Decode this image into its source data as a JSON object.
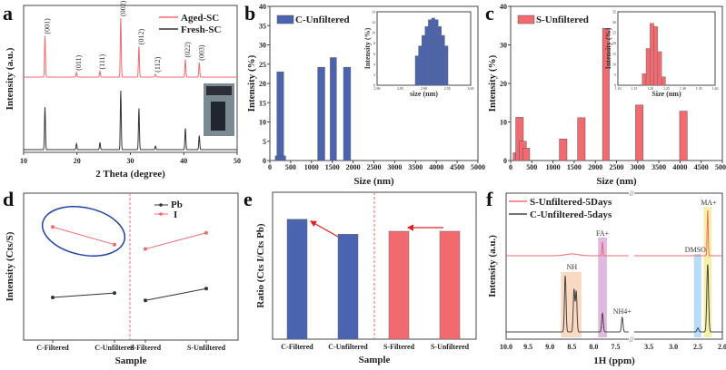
{
  "colors": {
    "red": "#f06a70",
    "blue": "#4b64b0",
    "black": "#333333",
    "ellipse": "#2040a0"
  },
  "chart_data": [
    {
      "id": "a",
      "type": "line",
      "panel_label": "a",
      "title": "",
      "xlabel": "2 Theta (degree)",
      "ylabel": "Intensity (a.u.)",
      "xlim": [
        10,
        50
      ],
      "xticks": [
        10,
        20,
        30,
        40,
        50
      ],
      "legend": [
        "Aged-SC",
        "Fresh-SC"
      ],
      "legend_position": "top-right",
      "peaks_aged": [
        {
          "x": 14.0,
          "h": 0.7,
          "label": "(001)"
        },
        {
          "x": 19.9,
          "h": 0.08,
          "label": "(011)"
        },
        {
          "x": 24.3,
          "h": 0.1,
          "label": "(111)"
        },
        {
          "x": 28.2,
          "h": 1.0,
          "label": "(002)"
        },
        {
          "x": 31.6,
          "h": 0.52,
          "label": "(012)"
        },
        {
          "x": 34.7,
          "h": 0.05,
          "label": "(112)"
        },
        {
          "x": 40.3,
          "h": 0.3,
          "label": "(022)"
        },
        {
          "x": 42.9,
          "h": 0.25,
          "label": "(003)"
        }
      ],
      "peaks_fresh": [
        {
          "x": 14.0,
          "h": 0.72
        },
        {
          "x": 19.9,
          "h": 0.1
        },
        {
          "x": 24.3,
          "h": 0.12
        },
        {
          "x": 28.2,
          "h": 1.0
        },
        {
          "x": 31.6,
          "h": 0.7
        },
        {
          "x": 34.7,
          "h": 0.06
        },
        {
          "x": 40.3,
          "h": 0.36
        },
        {
          "x": 42.9,
          "h": 0.24
        }
      ],
      "inset": "photo of crystals in vial"
    },
    {
      "id": "b",
      "type": "bar",
      "panel_label": "b",
      "xlabel": "Size (nm)",
      "ylabel": "Intensity (%)",
      "xlim": [
        0,
        5000
      ],
      "ylim": [
        0,
        40
      ],
      "xticks": [
        0,
        500,
        1000,
        1500,
        2000,
        2500,
        3000,
        3500,
        4000,
        4500,
        5000
      ],
      "yticks": [
        0,
        5,
        10,
        15,
        20,
        25,
        30,
        35,
        40
      ],
      "legend": [
        "C-Unfiltered"
      ],
      "legend_position": "top-left",
      "bars": [
        {
          "x0": 130,
          "x1": 200,
          "v": 1.2
        },
        {
          "x0": 170,
          "x1": 330,
          "v": 23.0
        },
        {
          "x0": 240,
          "x1": 380,
          "v": 1.2
        },
        {
          "x0": 1150,
          "x1": 1320,
          "v": 24.2
        },
        {
          "x0": 1450,
          "x1": 1600,
          "v": 26.7
        },
        {
          "x0": 1770,
          "x1": 1940,
          "v": 24.2
        }
      ],
      "inset": {
        "xlabel": "size (nm)",
        "ylabel": "Intensity (%)",
        "xlim": [
          2.8,
          3.0
        ],
        "ylim": [
          0,
          14
        ],
        "xticks": [
          "2.80",
          "2.85",
          "2.90",
          "2.95",
          "3.00"
        ],
        "yticks": [
          0,
          2,
          4,
          6,
          8,
          10,
          12,
          14
        ],
        "bars": [
          {
            "x": 2.885,
            "v": 5.6
          },
          {
            "x": 2.892,
            "v": 7.5
          },
          {
            "x": 2.899,
            "v": 9.5
          },
          {
            "x": 2.906,
            "v": 11.2
          },
          {
            "x": 2.913,
            "v": 12.5
          },
          {
            "x": 2.92,
            "v": 12.8
          },
          {
            "x": 2.927,
            "v": 12.5
          },
          {
            "x": 2.934,
            "v": 11.2
          },
          {
            "x": 2.941,
            "v": 9.5
          },
          {
            "x": 2.948,
            "v": 7.5
          }
        ]
      }
    },
    {
      "id": "c",
      "type": "bar",
      "panel_label": "c",
      "xlabel": "Size (nm)",
      "ylabel": "Intensity (%)",
      "xlim": [
        0,
        5000
      ],
      "ylim": [
        0,
        40
      ],
      "xticks": [
        0,
        500,
        1000,
        1500,
        2000,
        2500,
        3000,
        3500,
        4000,
        4500,
        5000
      ],
      "yticks": [
        0,
        10,
        20,
        30,
        40
      ],
      "legend": [
        "S-Unfiltered"
      ],
      "legend_position": "top-left",
      "bars": [
        {
          "x0": 60,
          "x1": 140,
          "v": 2.0
        },
        {
          "x0": 120,
          "x1": 300,
          "v": 11.2
        },
        {
          "x0": 200,
          "x1": 370,
          "v": 5.0
        },
        {
          "x0": 290,
          "x1": 450,
          "v": 3.2
        },
        {
          "x0": 1150,
          "x1": 1330,
          "v": 5.6
        },
        {
          "x0": 1580,
          "x1": 1760,
          "v": 11.1
        },
        {
          "x0": 2170,
          "x1": 2330,
          "v": 34.3
        },
        {
          "x0": 2950,
          "x1": 3130,
          "v": 14.4
        },
        {
          "x0": 3990,
          "x1": 4170,
          "v": 12.8
        }
      ],
      "inset": {
        "xlabel": "Size (nm)",
        "ylabel": "Intensity (%)",
        "xlim": [
          1.1,
          1.4
        ],
        "ylim": [
          0,
          35
        ],
        "xticks": [
          "1.10",
          "1.15",
          "1.20",
          "1.25",
          "1.30",
          "1.35",
          "1.40"
        ],
        "yticks": [
          0,
          5,
          10,
          15,
          20,
          25,
          30,
          35
        ],
        "bars": [
          {
            "x": 1.181,
            "v": 5.5
          },
          {
            "x": 1.193,
            "v": 17.5
          },
          {
            "x": 1.205,
            "v": 29.5
          },
          {
            "x": 1.217,
            "v": 28.0
          },
          {
            "x": 1.229,
            "v": 16.0
          },
          {
            "x": 1.241,
            "v": 4.0
          }
        ]
      }
    },
    {
      "id": "d",
      "type": "line",
      "panel_label": "d",
      "xlabel": "Sample",
      "ylabel": "Intensity (Cts/S)",
      "categories": [
        "C-Filtered",
        "C-Unfiltered",
        "S-Filtered",
        "S-Unfiltered"
      ],
      "legend": [
        "Pb",
        "I"
      ],
      "legend_position": "top-right",
      "series": [
        {
          "name": "Pb",
          "values": [
            0.29,
            0.32,
            0.27,
            0.35
          ]
        },
        {
          "name": "I",
          "values": [
            0.77,
            0.65,
            0.62,
            0.73
          ]
        }
      ],
      "ylim": [
        0,
        1
      ],
      "annotation": "ellipse around C-Filtered and C-Unfiltered I points; dashed divider between C and S groups"
    },
    {
      "id": "e",
      "type": "bar",
      "panel_label": "e",
      "xlabel": "Sample",
      "ylabel": "Ratio (Cts I/Cts Pb)",
      "categories": [
        "C-Filtered",
        "C-Unfiltered",
        "S-Filtered",
        "S-Unfiltered"
      ],
      "values": [
        0.8,
        0.7,
        0.72,
        0.72
      ],
      "ylim": [
        0,
        1
      ],
      "annotation": "arrows pointing from unfiltered to filtered; dashed divider between C and S groups"
    },
    {
      "id": "f",
      "type": "line",
      "panel_label": "f",
      "xlabel": "1H (ppm)",
      "ylabel": "Intensity (a.u.)",
      "xticks_left": [
        "10.0",
        "9.5",
        "9.0",
        "8.5",
        "8.0",
        "7.5"
      ],
      "xticks_right": [
        "3.5",
        "3.0",
        "2.5",
        "2.0"
      ],
      "axis_break": "between 7.2 and 3.8 ppm",
      "legend": [
        "S-Unfiltered-5Days",
        "C-Unfiltered-5days"
      ],
      "legend_position": "top-left",
      "annotations": [
        "NH",
        "FA+",
        "NH4+",
        "DMSO",
        "MA+"
      ],
      "peaks_S": [
        {
          "x": 8.5,
          "h": 0.04,
          "w": 0.2
        },
        {
          "x": 7.8,
          "h": 0.3
        },
        {
          "x": 2.3,
          "h": 1.0
        }
      ],
      "peaks_C": [
        {
          "x": 8.65,
          "h": 1.0
        },
        {
          "x": 8.45,
          "h": 0.75
        },
        {
          "x": 8.4,
          "h": 0.72
        },
        {
          "x": 7.8,
          "h": 0.33
        },
        {
          "x": 7.35,
          "h": 0.26
        },
        {
          "x": 2.5,
          "h": 0.07
        },
        {
          "x": 2.3,
          "h": 1.2
        }
      ]
    }
  ]
}
